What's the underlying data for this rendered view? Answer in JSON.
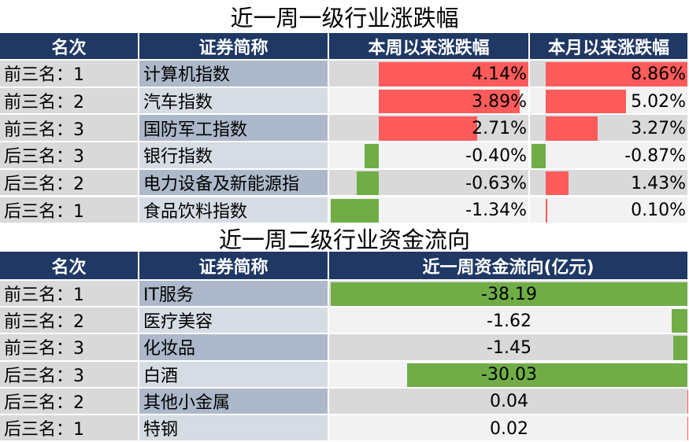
{
  "tables": [
    {
      "title": "近一周一级行业涨跌幅",
      "headers": [
        "名次",
        "证券简称",
        "本周以来涨跌幅",
        "本月以来涨跌幅"
      ],
      "ranks": [
        "前三名：1",
        "前三名：2",
        "前三名：3",
        "后三名：3",
        "后三名：2",
        "后三名：1"
      ],
      "names": [
        "计算机指数",
        "汽车指数",
        "国防军工指数",
        "银行指数",
        "电力设备及新能源指",
        "食品饮料指数"
      ],
      "columns": [
        {
          "values": [
            4.14,
            3.89,
            2.71,
            -0.4,
            -0.63,
            -1.34
          ],
          "value_labels": [
            "4.14%",
            "3.89%",
            "2.71%",
            "-0.40%",
            "-0.63%",
            "-1.34%"
          ]
        },
        {
          "values": [
            8.86,
            5.02,
            3.27,
            -0.87,
            1.43,
            0.1
          ],
          "value_labels": [
            "8.86%",
            "5.02%",
            "3.27%",
            "-0.87%",
            "1.43%",
            "0.10%"
          ]
        }
      ],
      "colors": {
        "positive": "#ff5b5b",
        "negative": "#70ad47"
      }
    },
    {
      "title": "近一周二级行业资金流向",
      "headers": [
        "名次",
        "证券简称",
        "近一周资金流向(亿元)"
      ],
      "ranks": [
        "前三名：1",
        "前三名：2",
        "前三名：3",
        "后三名：3",
        "后三名：2",
        "后三名：1"
      ],
      "names": [
        "IT服务",
        "医疗美容",
        "化妆品",
        "白酒",
        "其他小金属",
        "特钢"
      ],
      "columns": [
        {
          "values": [
            -38.19,
            -1.62,
            -1.45,
            -30.03,
            0.04,
            0.02
          ]
        }
      ],
      "colors": {
        "positive": "#ff5b5b",
        "negative": "#70ad47"
      }
    }
  ]
}
